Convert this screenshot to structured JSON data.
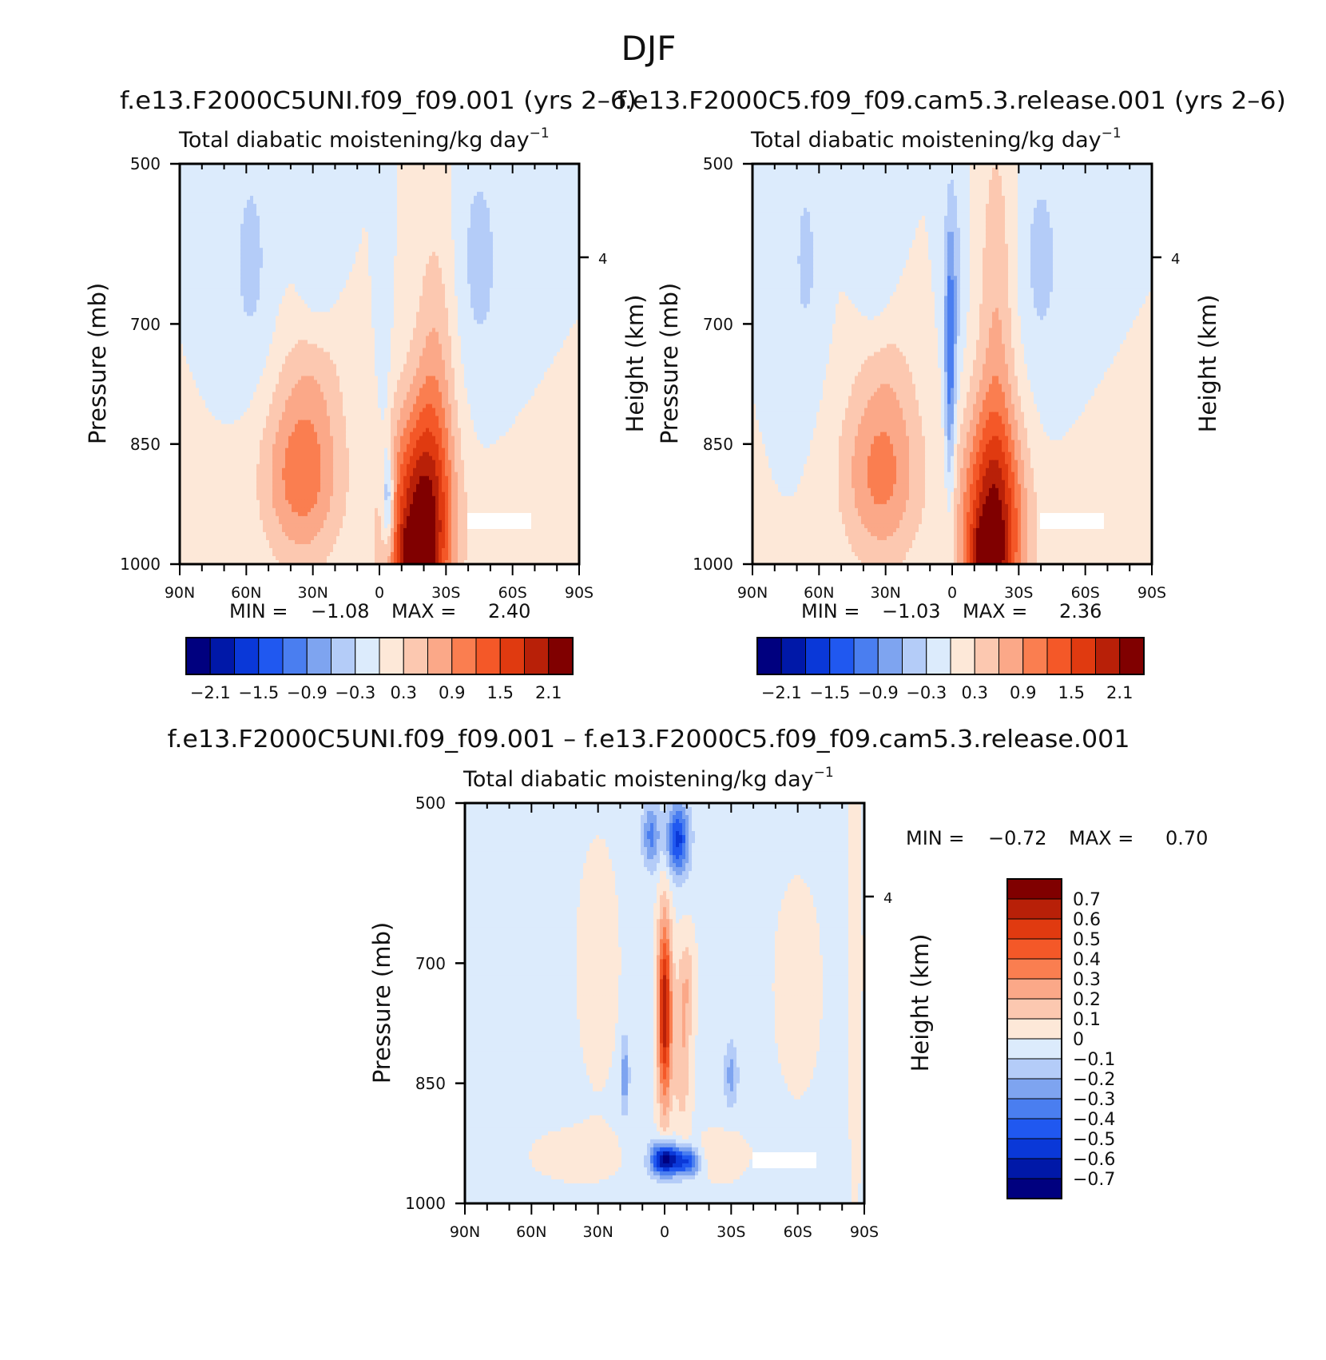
{
  "figure": {
    "title": "DJF",
    "panels": [
      {
        "id": "top-left",
        "case_title": "f.e13.F2000C5UNI.f09_f09.001 (yrs 2–6)",
        "variable": "Total diabatic moistening/kg day",
        "variable_exponent": "−1",
        "ylabel": "Pressure (mb)",
        "y2label": "Height (km)",
        "y_ticks": [
          "500",
          "700",
          "850",
          "1000"
        ],
        "y2_ticks": [
          "4"
        ],
        "x_ticks": [
          "90N",
          "60N",
          "30N",
          "0",
          "30S",
          "60S",
          "90S"
        ],
        "stats": {
          "min_label": "MIN =",
          "min_value": "−1.08",
          "max_label": "MAX =",
          "max_value": "2.40"
        }
      },
      {
        "id": "top-right",
        "case_title": "f.e13.F2000C5.f09_f09.cam5.3.release.001 (yrs 2–6)",
        "variable": "Total diabatic moistening/kg day",
        "variable_exponent": "−1",
        "ylabel": "Pressure (mb)",
        "y2label": "Height (km)",
        "y_ticks": [
          "500",
          "700",
          "850",
          "1000"
        ],
        "y2_ticks": [
          "4"
        ],
        "x_ticks": [
          "90N",
          "60N",
          "30N",
          "0",
          "30S",
          "60S",
          "90S"
        ],
        "stats": {
          "min_label": "MIN =",
          "min_value": "−1.03",
          "max_label": "MAX =",
          "max_value": "2.36"
        }
      },
      {
        "id": "bottom",
        "case_title": "f.e13.F2000C5UNI.f09_f09.001 – f.e13.F2000C5.f09_f09.cam5.3.release.001",
        "variable": "Total diabatic moistening/kg day",
        "variable_exponent": "−1",
        "ylabel": "Pressure (mb)",
        "y2label": "Height (km)",
        "y_ticks": [
          "500",
          "700",
          "850",
          "1000"
        ],
        "y2_ticks": [
          "4"
        ],
        "x_ticks": [
          "90N",
          "60N",
          "30N",
          "0",
          "30S",
          "60S",
          "90S"
        ],
        "stats": {
          "min_label": "MIN =",
          "min_value": "−0.72",
          "max_label": "MAX =",
          "max_value": "0.70"
        }
      }
    ],
    "colorbar_top": {
      "colors": [
        "#00007f",
        "#0018a8",
        "#0a38d8",
        "#2058f0",
        "#4a7ef0",
        "#7ea4f0",
        "#b4ccf8",
        "#dcebfc",
        "#fde8d8",
        "#fcc8b0",
        "#fba888",
        "#fa7e50",
        "#f45828",
        "#e03a10",
        "#b82008",
        "#800000"
      ],
      "labels": [
        "−2.1",
        "−1.5",
        "−0.9",
        "−0.3",
        "0.3",
        "0.9",
        "1.5",
        "2.1"
      ]
    },
    "colorbar_diff": {
      "colors": [
        "#800000",
        "#b82008",
        "#e03a10",
        "#f45828",
        "#fa7e50",
        "#fba888",
        "#fcc8b0",
        "#fde8d8",
        "#dcebfc",
        "#b4ccf8",
        "#7ea4f0",
        "#4a7ef0",
        "#2058f0",
        "#0a38d8",
        "#0018a8",
        "#00007f"
      ],
      "labels": [
        "0.7",
        "0.6",
        "0.5",
        "0.4",
        "0.3",
        "0.2",
        "0.1",
        "0",
        "−0.1",
        "−0.2",
        "−0.3",
        "−0.4",
        "−0.5",
        "−0.6",
        "−0.7"
      ]
    }
  },
  "chart_data": [
    {
      "type": "heatmap",
      "title": "f.e13.F2000C5UNI.f09_f09.001 (yrs 2–6)",
      "subtitle": "Total diabatic moistening/kg day−1",
      "xlabel": "",
      "ylabel": "Pressure (mb)",
      "y2label": "Height (km)",
      "x_range": [
        "90N",
        "90S"
      ],
      "ylim": [
        1000,
        500
      ],
      "min": -1.08,
      "max": 2.4,
      "field": {
        "background": 0,
        "blobs": [
          {
            "lat": -18,
            "p": 960,
            "slat": 14,
            "sp": 150,
            "amp": 2.2
          },
          {
            "lat": -16,
            "p": 990,
            "slat": 7,
            "sp": 40,
            "amp": 0.9
          },
          {
            "lat": -25,
            "p": 800,
            "slat": 9,
            "sp": 230,
            "amp": 0.6
          },
          {
            "lat": 35,
            "p": 890,
            "slat": 18,
            "sp": 110,
            "amp": 1.1
          },
          {
            "lat": 30,
            "p": 760,
            "slat": 14,
            "sp": 80,
            "amp": 0.35
          },
          {
            "lat": -60,
            "p": 950,
            "slat": 18,
            "sp": 70,
            "amp": 0.3
          },
          {
            "lat": -4,
            "p": 920,
            "slat": 2.5,
            "sp": 60,
            "amp": -1.05
          },
          {
            "lat": -2,
            "p": 700,
            "slat": 3,
            "sp": 220,
            "amp": -0.3
          },
          {
            "lat": -45,
            "p": 620,
            "slat": 11,
            "sp": 160,
            "amp": -0.4
          },
          {
            "lat": 28,
            "p": 600,
            "slat": 8,
            "sp": 120,
            "amp": -0.3
          },
          {
            "lat": 58,
            "p": 620,
            "slat": 10,
            "sp": 160,
            "amp": -0.38
          }
        ]
      }
    },
    {
      "type": "heatmap",
      "title": "f.e13.F2000C5.f09_f09.cam5.3.release.001 (yrs 2–6)",
      "subtitle": "Total diabatic moistening/kg day−1",
      "xlabel": "",
      "ylabel": "Pressure (mb)",
      "y2label": "Height (km)",
      "x_range": [
        "90N",
        "90S"
      ],
      "ylim": [
        1000,
        500
      ],
      "min": -1.03,
      "max": 2.36,
      "field": {
        "background": 0,
        "blobs": [
          {
            "lat": -18,
            "p": 960,
            "slat": 14,
            "sp": 150,
            "amp": 2.1
          },
          {
            "lat": -15,
            "p": 990,
            "slat": 7,
            "sp": 40,
            "amp": 0.9
          },
          {
            "lat": -20,
            "p": 700,
            "slat": 8,
            "sp": 260,
            "amp": 0.55
          },
          {
            "lat": 32,
            "p": 890,
            "slat": 18,
            "sp": 110,
            "amp": 1.0
          },
          {
            "lat": 30,
            "p": 760,
            "slat": 14,
            "sp": 80,
            "amp": 0.3
          },
          {
            "lat": -60,
            "p": 950,
            "slat": 18,
            "sp": 70,
            "amp": 0.28
          },
          {
            "lat": 1,
            "p": 760,
            "slat": 2.4,
            "sp": 170,
            "amp": -1.0
          },
          {
            "lat": -1,
            "p": 650,
            "slat": 5,
            "sp": 150,
            "amp": -0.4
          },
          {
            "lat": -40,
            "p": 620,
            "slat": 11,
            "sp": 160,
            "amp": -0.38
          },
          {
            "lat": 35,
            "p": 600,
            "slat": 8,
            "sp": 120,
            "amp": -0.3
          },
          {
            "lat": 66,
            "p": 620,
            "slat": 8,
            "sp": 160,
            "amp": -0.35
          }
        ]
      }
    },
    {
      "type": "heatmap",
      "title": "f.e13.F2000C5UNI.f09_f09.001 – f.e13.F2000C5.f09_f09.cam5.3.release.001",
      "subtitle": "Total diabatic moistening/kg day−1",
      "xlabel": "",
      "ylabel": "Pressure (mb)",
      "y2label": "Height (km)",
      "x_range": [
        "90N",
        "90S"
      ],
      "ylim": [
        1000,
        500
      ],
      "min": -0.72,
      "max": 0.7,
      "field": {
        "background": -0.03,
        "blobs": [
          {
            "lat": 0,
            "p": 760,
            "slat": 3.2,
            "sp": 120,
            "amp": 0.72
          },
          {
            "lat": -8,
            "p": 820,
            "slat": 4,
            "sp": 90,
            "amp": 0.22
          },
          {
            "lat": -10,
            "p": 720,
            "slat": 4,
            "sp": 60,
            "amp": 0.18
          },
          {
            "lat": 0,
            "p": 945,
            "slat": 6,
            "sp": 20,
            "amp": -0.75
          },
          {
            "lat": -10,
            "p": 948,
            "slat": 6,
            "sp": 18,
            "amp": -0.48
          },
          {
            "lat": -6,
            "p": 545,
            "slat": 5,
            "sp": 45,
            "amp": -0.5
          },
          {
            "lat": 6,
            "p": 540,
            "slat": 4,
            "sp": 40,
            "amp": -0.3
          },
          {
            "lat": -25,
            "p": 940,
            "slat": 12,
            "sp": 30,
            "amp": 0.12
          },
          {
            "lat": 18,
            "p": 840,
            "slat": 2,
            "sp": 50,
            "amp": -0.25
          },
          {
            "lat": -30,
            "p": 840,
            "slat": 3,
            "sp": 40,
            "amp": -0.22
          },
          {
            "lat": 40,
            "p": 940,
            "slat": 25,
            "sp": 40,
            "amp": 0.06
          },
          {
            "lat": 30,
            "p": 700,
            "slat": 10,
            "sp": 160,
            "amp": 0.08
          },
          {
            "lat": -60,
            "p": 730,
            "slat": 12,
            "sp": 150,
            "amp": 0.07
          },
          {
            "lat": -86,
            "p": 700,
            "slat": 3,
            "sp": 300,
            "amp": 0.1
          }
        ]
      }
    }
  ]
}
